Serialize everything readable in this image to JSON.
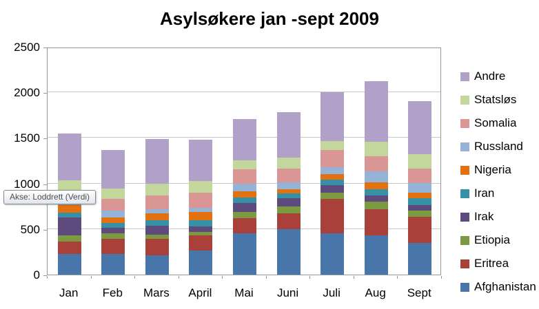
{
  "chart": {
    "title": "Asylsøkere jan -sept 2009",
    "tooltip": "Akse: Loddrett (Verdi)"
  },
  "chart_data": {
    "type": "bar",
    "stacked": true,
    "title": "Asylsøkere jan -sept 2009",
    "xlabel": "",
    "ylabel": "",
    "ylim": [
      0,
      2500
    ],
    "yticks": [
      0,
      500,
      1000,
      1500,
      2000,
      2500
    ],
    "ytick_labels": [
      "0",
      "500",
      "1000",
      "1500",
      "2000",
      "2500"
    ],
    "grid": true,
    "legend_position": "right",
    "legend_order_top_to_bottom": [
      "Andre",
      "Statsløs",
      "Somalia",
      "Russland",
      "Nigeria",
      "Iran",
      "Irak",
      "Etiopia",
      "Eritrea",
      "Afghanistan"
    ],
    "categories": [
      "Jan",
      "Feb",
      "Mars",
      "April",
      "Mai",
      "Juni",
      "Juli",
      "Aug",
      "Sept"
    ],
    "series": [
      {
        "name": "Afghanistan",
        "color": "#4876ab",
        "values": [
          225,
          230,
          215,
          265,
          450,
          500,
          455,
          430,
          345
        ]
      },
      {
        "name": "Eritrea",
        "color": "#a9413a",
        "values": [
          140,
          160,
          180,
          165,
          170,
          175,
          375,
          290,
          290
        ]
      },
      {
        "name": "Etiopia",
        "color": "#7c9a42",
        "values": [
          65,
          65,
          45,
          40,
          70,
          70,
          70,
          80,
          65
        ]
      },
      {
        "name": "Irak",
        "color": "#5f4a7d",
        "values": [
          195,
          60,
          100,
          60,
          95,
          90,
          85,
          70,
          65
        ]
      },
      {
        "name": "Iran",
        "color": "#3691a6",
        "values": [
          55,
          50,
          55,
          65,
          60,
          55,
          60,
          70,
          75
        ]
      },
      {
        "name": "Nigeria",
        "color": "#e3710f",
        "values": [
          80,
          65,
          75,
          90,
          70,
          50,
          60,
          75,
          60
        ]
      },
      {
        "name": "Russland",
        "color": "#95b3d7",
        "values": [
          70,
          75,
          50,
          50,
          85,
          70,
          70,
          120,
          105
        ]
      },
      {
        "name": "Somalia",
        "color": "#d99694",
        "values": [
          90,
          125,
          150,
          165,
          155,
          155,
          190,
          165,
          160
        ]
      },
      {
        "name": "Statsløs",
        "color": "#c3d69b",
        "values": [
          115,
          115,
          125,
          130,
          100,
          120,
          100,
          155,
          160
        ]
      },
      {
        "name": "Andre",
        "color": "#b1a0c7",
        "values": [
          510,
          420,
          490,
          450,
          450,
          495,
          540,
          670,
          580
        ]
      }
    ],
    "totals": [
      1545,
      1365,
      1485,
      1480,
      1705,
      1780,
      2005,
      2125,
      1905
    ]
  }
}
